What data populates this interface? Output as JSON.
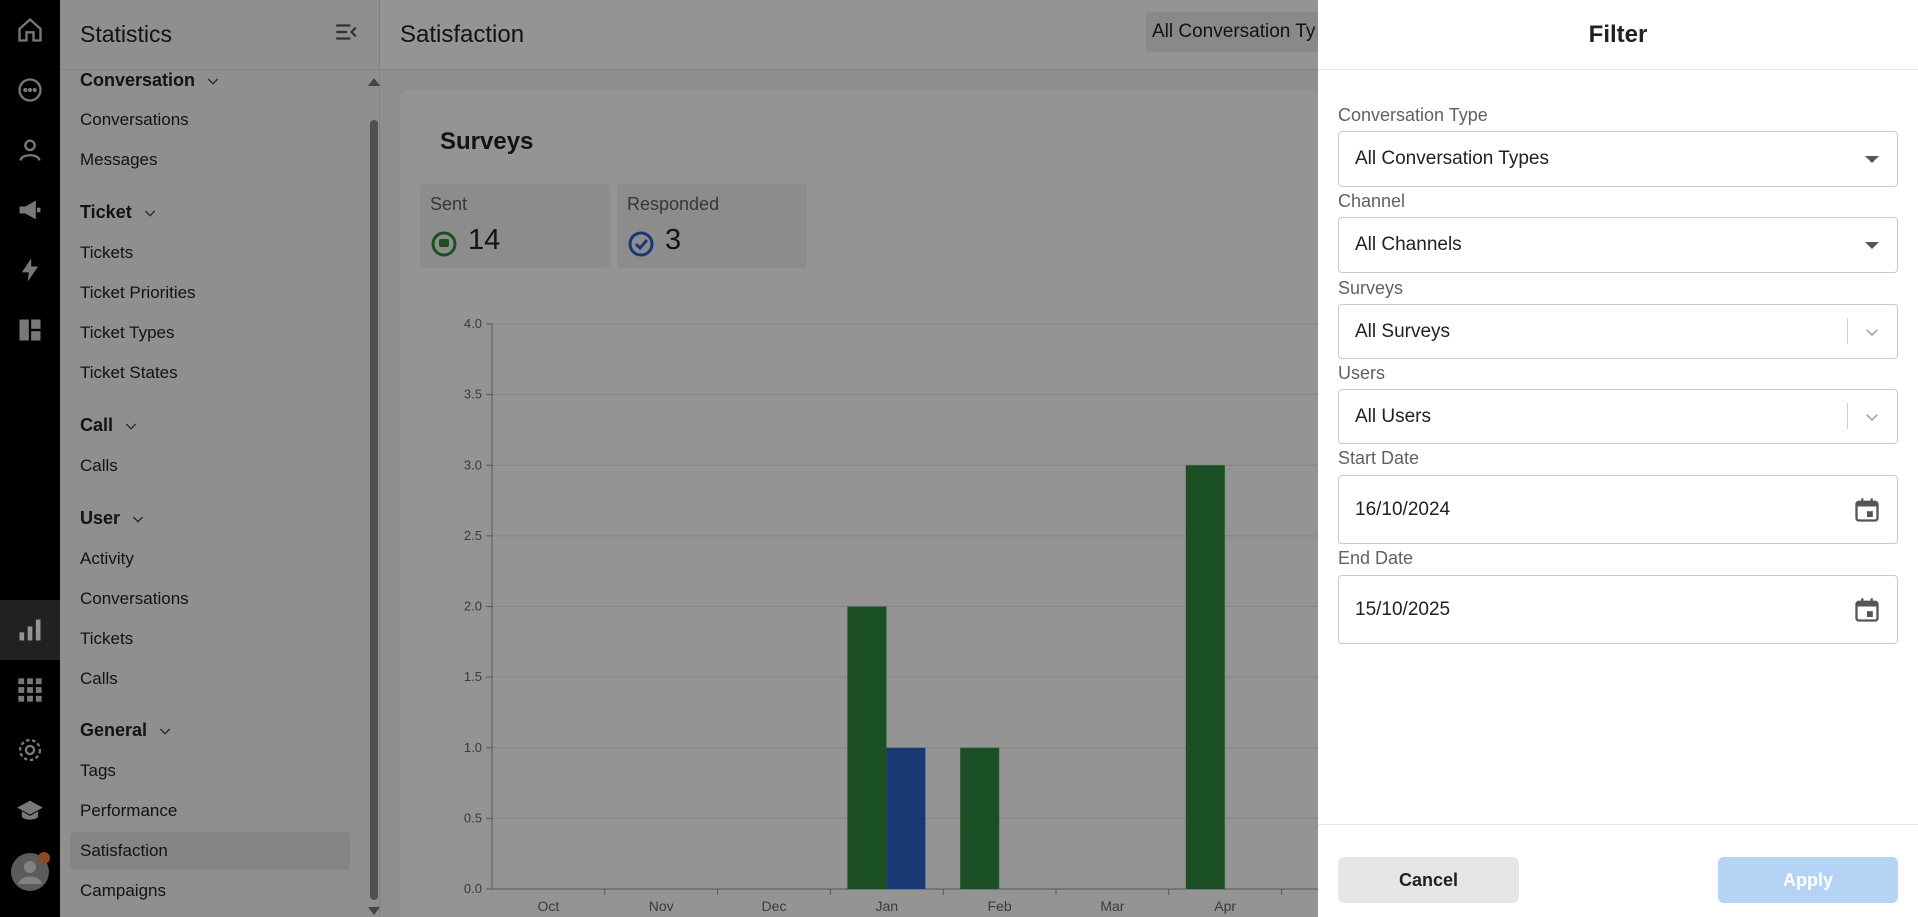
{
  "rail": {
    "icons": [
      "home-icon",
      "chat-icon",
      "user-icon",
      "megaphone-icon",
      "lightning-icon",
      "dashboard-icon",
      "statistics-icon",
      "apps-grid-icon",
      "settings-icon",
      "academy-icon",
      "avatar-icon"
    ]
  },
  "sidebar": {
    "title": "Statistics",
    "groups": [
      {
        "label": "Conversation",
        "items": [
          "Conversations",
          "Messages"
        ]
      },
      {
        "label": "Ticket",
        "items": [
          "Tickets",
          "Ticket Priorities",
          "Ticket Types",
          "Ticket States"
        ]
      },
      {
        "label": "Call",
        "items": [
          "Calls"
        ]
      },
      {
        "label": "User",
        "items": [
          "Activity",
          "Conversations",
          "Tickets",
          "Calls"
        ]
      },
      {
        "label": "General",
        "items": [
          "Tags",
          "Performance",
          "Satisfaction",
          "Campaigns"
        ]
      }
    ],
    "selected": "Satisfaction"
  },
  "header": {
    "title": "Satisfaction",
    "conversation_select": "All Conversation Ty"
  },
  "card": {
    "title": "Surveys",
    "stats": [
      {
        "label": "Sent",
        "value": "14",
        "icon": "sent-chat-icon",
        "color": "#2e8b3e"
      },
      {
        "label": "Responded",
        "value": "3",
        "icon": "responded-check-icon",
        "color": "#2a63c7"
      }
    ]
  },
  "chart_data": {
    "type": "bar",
    "categories": [
      "Oct",
      "Nov",
      "Dec",
      "Jan",
      "Feb",
      "Mar",
      "Apr"
    ],
    "series": [
      {
        "values": [
          0,
          0,
          0,
          2,
          1,
          0,
          3
        ],
        "color": "#2e8b3e"
      },
      {
        "values": [
          0,
          0,
          0,
          1,
          0,
          0,
          0
        ],
        "color": "#2a63c7"
      }
    ],
    "yticks": [
      "0.0",
      "0.5",
      "1.0",
      "1.5",
      "2.0",
      "2.5",
      "3.0",
      "3.5",
      "4.0"
    ],
    "ylim": [
      0,
      4
    ],
    "grid": true
  },
  "filter": {
    "title": "Filter",
    "fields": {
      "conversation_type": {
        "label": "Conversation Type",
        "value": "All Conversation Types"
      },
      "channel": {
        "label": "Channel",
        "value": "All Channels"
      },
      "surveys": {
        "label": "Surveys",
        "value": "All Surveys"
      },
      "users": {
        "label": "Users",
        "value": "All Users"
      },
      "start_date": {
        "label": "Start Date",
        "value": "16/10/2024"
      },
      "end_date": {
        "label": "End Date",
        "value": "15/10/2025"
      }
    },
    "cancel_label": "Cancel",
    "apply_label": "Apply"
  },
  "colors": {
    "accent_blue": "#2a63c7",
    "accent_green": "#2e8b3e",
    "apply_disabled": "#b4d3f5",
    "notification": "#e8833a"
  }
}
